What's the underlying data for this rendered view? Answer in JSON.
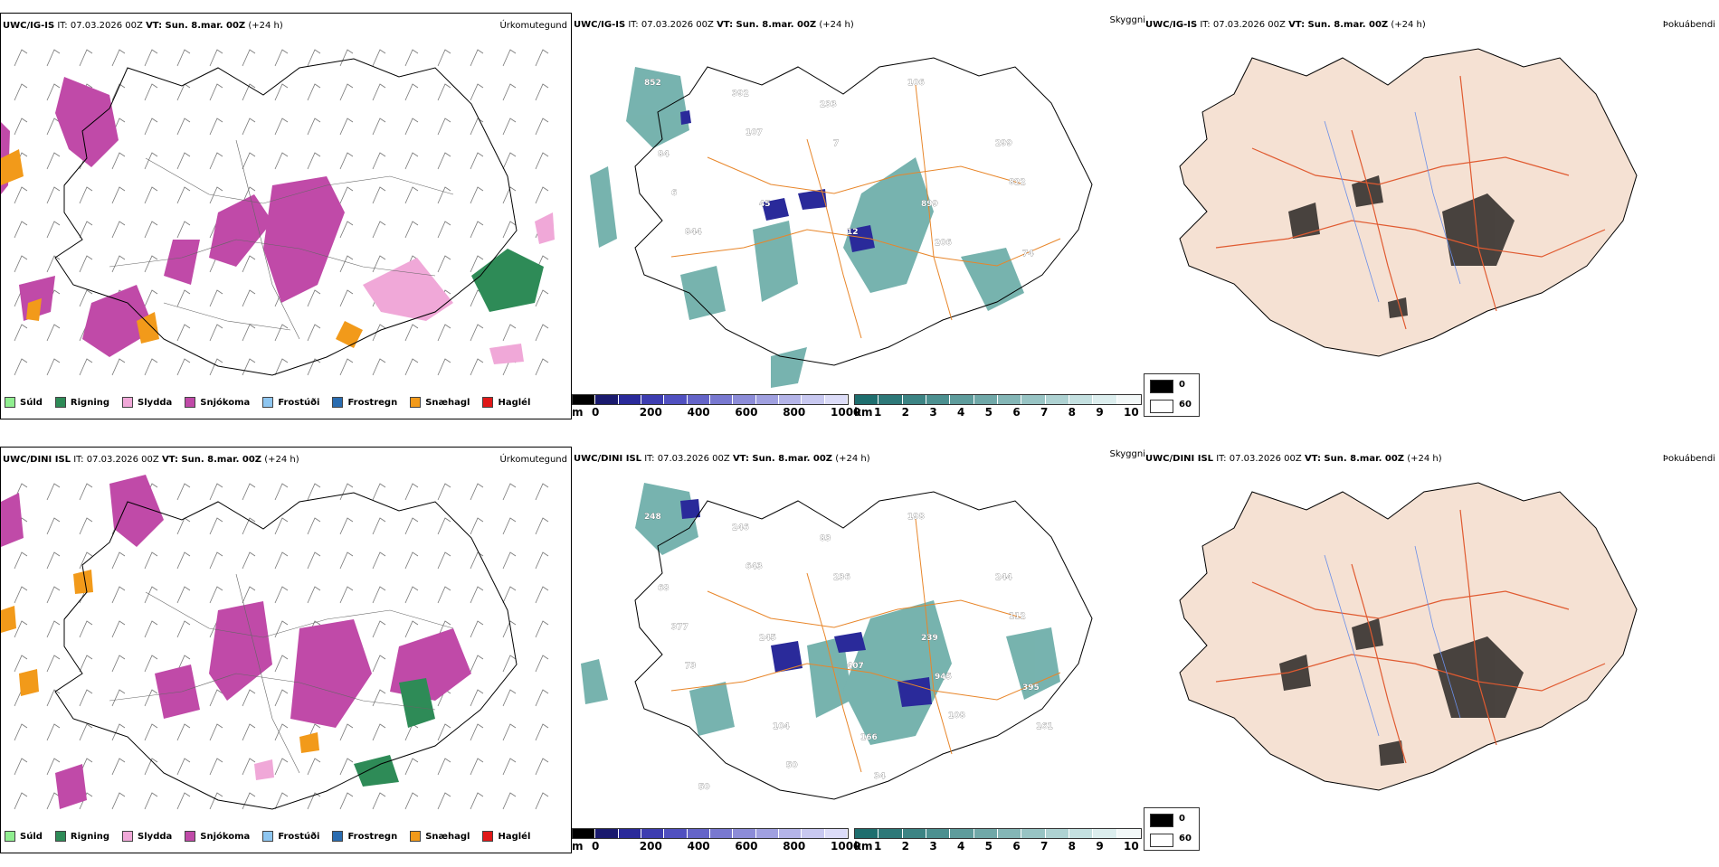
{
  "rows": [
    {
      "precip": {
        "model": "UWC/IG-IS",
        "it": "IT: 07.03.2026 00Z",
        "vt": "VT: Sun. 8.mar. 00Z",
        "lead": "(+24 h)",
        "title": "Úrkomutegund"
      },
      "cloud": {
        "model": "UWC/IG-IS",
        "it": "IT: 07.03.2026 00Z",
        "vt": "VT: Sun. 8.mar. 00Z",
        "lead": "(+24 h)",
        "title": "Skyggni",
        "labels": [
          "852",
          "392",
          "233",
          "106",
          "299",
          "84",
          "107",
          "7",
          "899",
          "822",
          "6",
          "45",
          "12",
          "206",
          "74",
          "844"
        ]
      },
      "fog": {
        "model": "UWC/IG-IS",
        "it": "IT: 07.03.2026 00Z",
        "vt": "VT: Sun. 8.mar. 00Z",
        "lead": "(+24 h)",
        "title": "Þokuábendi"
      }
    },
    {
      "precip": {
        "model": "UWC/DINI ISL",
        "it": "IT: 07.03.2026 00Z",
        "vt": "VT: Sun. 8.mar. 00Z",
        "lead": "(+24 h)",
        "title": "Úrkomutegund"
      },
      "cloud": {
        "model": "UWC/DINI ISL",
        "it": "IT: 07.03.2026 00Z",
        "vt": "VT: Sun. 8.mar. 00Z",
        "lead": "(+24 h)",
        "title": "Skyggni",
        "labels": [
          "248",
          "246",
          "83",
          "198",
          "244",
          "68",
          "643",
          "236",
          "239",
          "112",
          "377",
          "245",
          "407",
          "945",
          "395",
          "73",
          "104",
          "166",
          "108",
          "161",
          "50",
          "50",
          "34"
        ]
      },
      "fog": {
        "model": "UWC/DINI ISL",
        "it": "IT: 07.03.2026 00Z",
        "vt": "VT: Sun. 8.mar. 00Z",
        "lead": "(+24 h)",
        "title": "Þokuábendi"
      }
    }
  ],
  "precip_legend": [
    {
      "label": "Súld",
      "color": "#90ee90"
    },
    {
      "label": "Rigning",
      "color": "#2e8b57"
    },
    {
      "label": "Slydda",
      "color": "#f0a8d8"
    },
    {
      "label": "Snjókoma",
      "color": "#c04aa8"
    },
    {
      "label": "Frostúði",
      "color": "#8ec6f0"
    },
    {
      "label": "Frostregn",
      "color": "#2a6cb0"
    },
    {
      "label": "Snæhagl",
      "color": "#f29a1a"
    },
    {
      "label": "Haglél",
      "color": "#e01818"
    }
  ],
  "height_bar": {
    "unit": "m",
    "ticks": [
      "0",
      "200",
      "400",
      "600",
      "800",
      "1000"
    ],
    "colors": [
      "#000000",
      "#1a1a6e",
      "#2a2a9a",
      "#3d3db0",
      "#5050c0",
      "#6464c8",
      "#7878d0",
      "#8c8cd8",
      "#a0a0e0",
      "#b4b4e8",
      "#c8c8f0",
      "#dcdcf8"
    ]
  },
  "vis_bar": {
    "unit": "km",
    "ticks": [
      "1",
      "2",
      "3",
      "4",
      "5",
      "6",
      "7",
      "8",
      "9",
      "10"
    ],
    "colors": [
      "#1e6e6e",
      "#2d7878",
      "#3c8484",
      "#4c9090",
      "#5e9c9c",
      "#70a8a8",
      "#84b6b6",
      "#98c4c4",
      "#aed2d2",
      "#c4e0e0",
      "#dceeee",
      "#f2f8f8"
    ]
  },
  "fog_legend": [
    {
      "label": "0",
      "color": "#000000"
    },
    {
      "label": "60",
      "color": "#ffffff"
    }
  ],
  "colors": {
    "land": "#f5e1d3",
    "roads": "#e8662a",
    "rivers": "#6a8ee8",
    "coast": "#000000"
  }
}
